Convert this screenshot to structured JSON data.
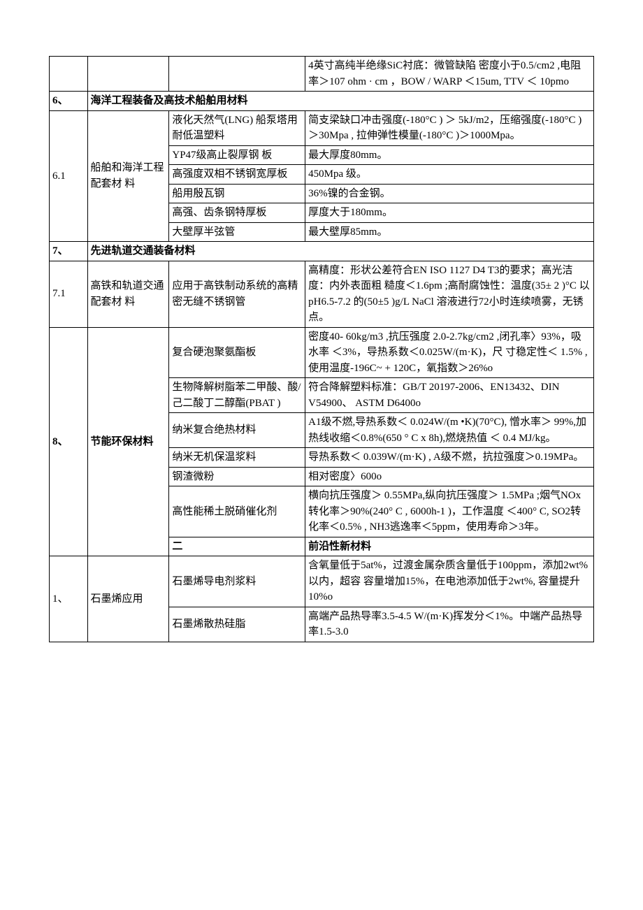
{
  "rows": [
    {
      "c1": "",
      "c2": "",
      "c3": "",
      "c4": " 4英寸高纯半绝缘SiC衬底：微管缺陷 密度小于0.5/cm2 ,电阻率＞107  ohm · cm ，BOW / WARP ＜15um, TTV ＜ 10pmo"
    },
    {
      "type": "header",
      "c1": "6、",
      "merged": "海洋工程装备及高技术船舶用材料"
    },
    {
      "c1": "6.1",
      "c1_rowspan": 6,
      "c2": "船舶和海洋工程配套材 料",
      "c2_rowspan": 6,
      "c3": "液化天然气(LNG) 船泵塔用耐低温塑料",
      "c4": "简支梁缺口冲击强度(-180°C )        ＞  5kJ/m2，压缩强度(-180°C ) ＞30Mpa , 拉伸弹性模量(-180°C )＞1000Mpa。"
    },
    {
      "c3": "YP47级高止裂厚钢 板",
      "c4": "最大厚度80mm。"
    },
    {
      "c3": "高强度双相不锈钢宽厚板",
      "c4": "450Mpa 级。"
    },
    {
      "c3": "船用殷瓦钢",
      "c4": "36%镍的合金钢。"
    },
    {
      "c3": "高强、齿条钢特厚板",
      "c4": "厚度大于180mm。"
    },
    {
      "c3": "大壁厚半弦管",
      "c4": "最大壁厚85mm。"
    },
    {
      "type": "header",
      "c1": "7、",
      "merged": "先进轨道交通装备材料"
    },
    {
      "c1": "7.1",
      "c2": "高铁和轨道交通配套材 料",
      "c3": "应用于高铁制动系统的高精密无缝不锈钢管",
      "c4": " 高精度：形状公差符合EN ISO 1127 D4 T3的要求；高光洁度：内外表面粗 糙度＜1.6pm ;高耐腐蚀性：温度(35± 2 )°C 以pH6.5-7.2 的(50±5 )g/L NaCl 溶液进行72小时连续喷雾，无锈点。"
    },
    {
      "type": "header2",
      "c1": "8、",
      "c1_rowspan": 7,
      "c2": "节能环保材料",
      "c2_rowspan": 7,
      "c3": "复合硬泡聚氨酯板",
      "c4": " 密度40- 60kg/m3 ,抗压强度 2.0-2.7kg/cm2 ,闭孔率〉93%，吸水率 ＜3%，导热系数＜0.025W/(m·K)，尺 寸稳定性＜ 1.5% ,使用温度-196C~ + 120C，氧指数＞26%o"
    },
    {
      "c3": "生物降解树脂苯二甲酸、酸/己二酸丁二醇酯(PBAT )",
      "c4": " 符合降解塑料标准：GB/T 20197-2006、EN13432、DIN V54900、 ASTM D6400o"
    },
    {
      "c3": "纳米复合绝热材料",
      "c4": " A1级不燃,导热系数＜ 0.024W/(m •K)(70°C), 憎水率＞ 99%,加热线收缩＜0.8%(650 ° C x 8h),燃烧热值 ＜ 0.4 MJ/kg。"
    },
    {
      "c3": "纳米无机保温浆料",
      "c4": "导热系数＜ 0.039W/(m·K) , A级不燃，抗拉强度＞0.19MPa。"
    },
    {
      "c3": "钢渣微粉",
      "c4": " 相对密度〉600o"
    },
    {
      "c3": "高性能稀土脱硝催化剂",
      "c4": " 横向抗压强度＞ 0.55MPa,纵向抗压强度＞ 1.5MPa ;烟气NOx转化率＞90%(240° C , 6000h-1 )，工作温度 ＜400° C, SO2转化率＜0.5% , NH3逃逸率＜5ppm，使用寿命＞3年。"
    },
    {
      "type": "header",
      "c1": "二",
      "merged": "前沿性新材料"
    },
    {
      "c1": "1、",
      "c1_rowspan": 2,
      "c2": "石墨烯应用",
      "c2_rowspan": 2,
      "c3": "石墨烯导电剂浆料",
      "c4": " 含氧量低于5at%，过渡金属杂质含量低于100ppm，添加2wt%以内，超容 容量增加15%，在电池添加低于2wt%, 容量提升10%o"
    },
    {
      "c3": "石墨烯散热硅脂",
      "c4": " 高端产品热导率3.5-4.5 W/(m·K)挥发分＜1%。中端产品热导率1.5-3.0"
    }
  ]
}
